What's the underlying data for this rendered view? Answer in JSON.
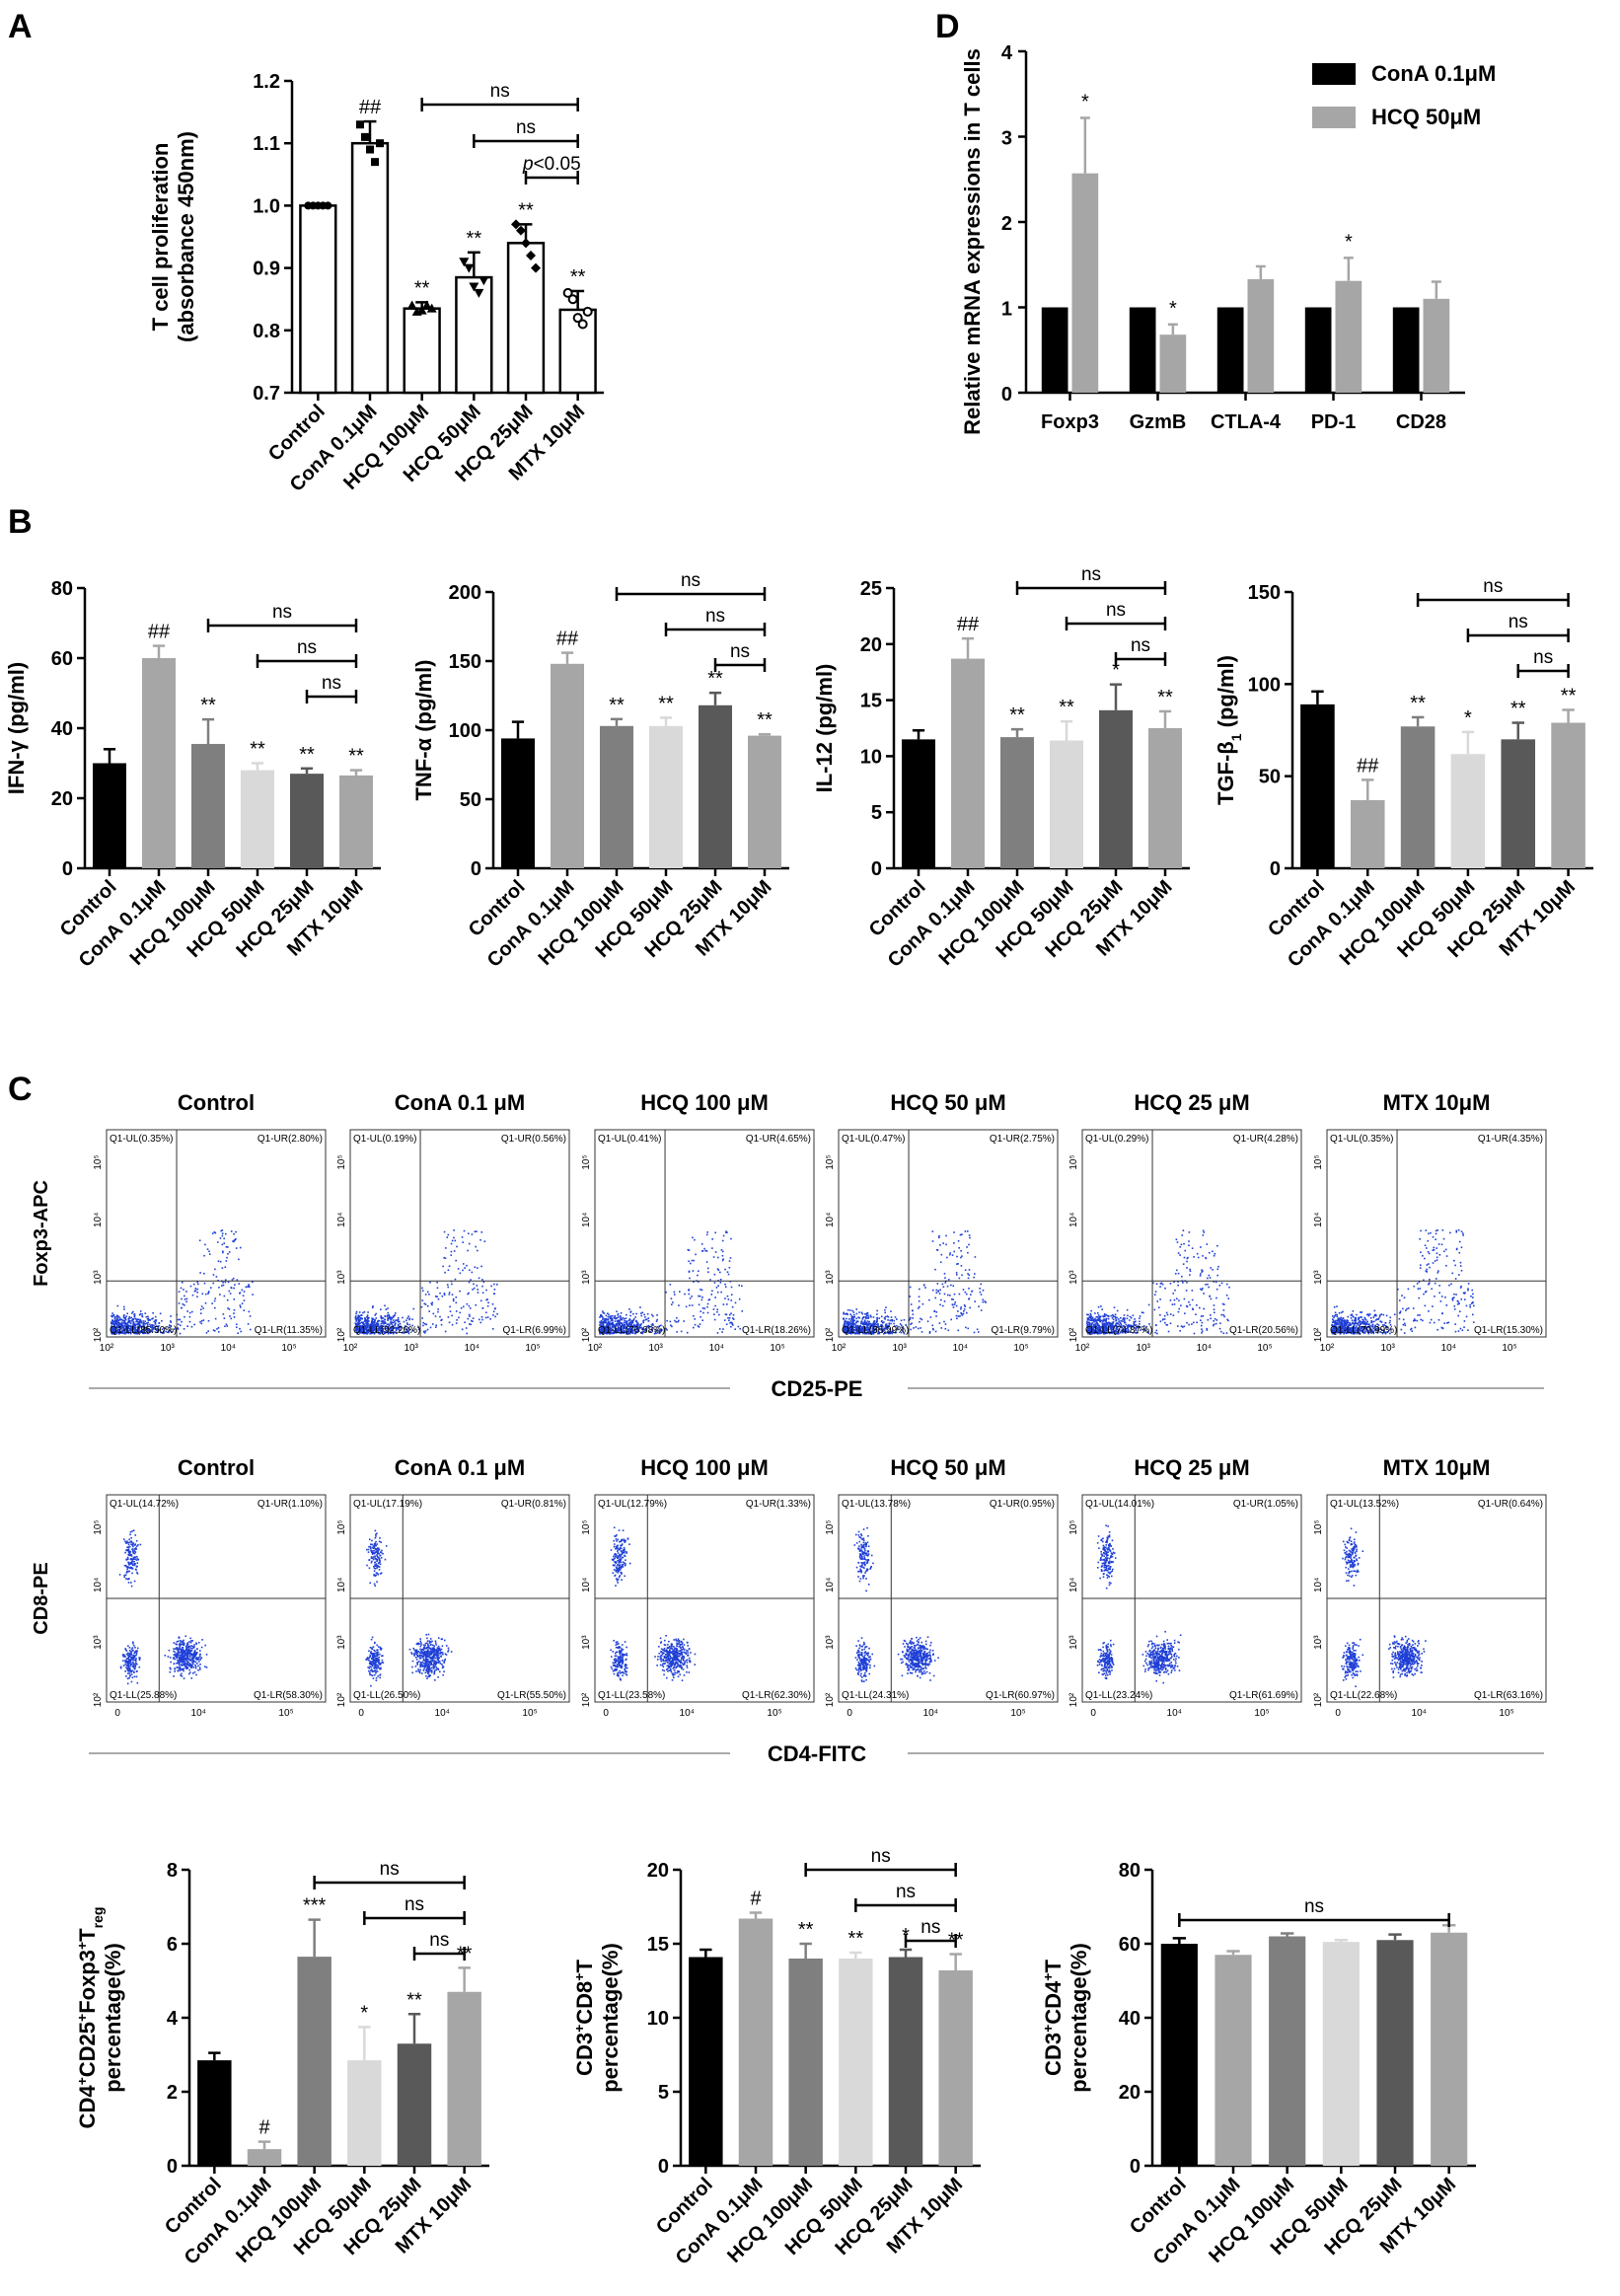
{
  "panels": {
    "A": "A",
    "B": "B",
    "C": "C",
    "D": "D"
  },
  "groups_common": [
    "Control",
    "ConA 0.1μM",
    "HCQ 100μM",
    "HCQ 50μM",
    "HCQ 25μM",
    "MTX 10μM"
  ],
  "chart_data": [
    {
      "id": "A",
      "type": "bar",
      "ylabel_lines": [
        "T cell proliferation",
        "(absorbance 450nm)"
      ],
      "ylim": [
        0.7,
        1.2
      ],
      "yticks": [
        "0.7",
        "0.8",
        "0.9",
        "1.0",
        "1.1",
        "1.2"
      ],
      "categories": [
        "Control",
        "ConA 0.1μM",
        "HCQ 100μM",
        "HCQ 50μM",
        "HCQ 25μM",
        "MTX 10μM"
      ],
      "values": [
        1.0,
        1.1,
        0.835,
        0.885,
        0.94,
        0.833
      ],
      "errors": [
        0.0,
        0.035,
        0.01,
        0.04,
        0.03,
        0.03
      ],
      "labels": [
        "",
        "##",
        "**",
        "**",
        "**",
        "**"
      ],
      "points": [
        [
          1.0,
          1.0,
          1.0,
          1.0,
          1.0
        ],
        [
          1.13,
          1.11,
          1.09,
          1.07,
          1.1
        ],
        [
          0.84,
          0.83,
          0.832,
          0.84,
          0.835
        ],
        [
          0.91,
          0.9,
          0.87,
          0.86,
          0.88
        ],
        [
          0.97,
          0.96,
          0.94,
          0.92,
          0.9
        ],
        [
          0.86,
          0.85,
          0.82,
          0.81,
          0.83
        ]
      ],
      "brackets": [
        {
          "from": 2,
          "to": 5,
          "text": "ns"
        },
        {
          "from": 3,
          "to": 5,
          "text": "ns"
        },
        {
          "from": 4,
          "to": 5,
          "text": "p<0.05"
        }
      ]
    },
    {
      "id": "D",
      "type": "bar",
      "ylabel": "Relative mRNA expressions in T cells",
      "ylim": [
        0,
        4
      ],
      "yticks": [
        "0",
        "1",
        "2",
        "3",
        "4"
      ],
      "categories": [
        "Foxp3",
        "GzmB",
        "CTLA-4",
        "PD-1",
        "CD28"
      ],
      "legend": [
        "ConA 0.1μM",
        "HCQ 50μM"
      ],
      "series": [
        {
          "name": "ConA 0.1μM",
          "values": [
            1,
            1,
            1,
            1,
            1
          ],
          "errors": [
            0,
            0,
            0,
            0,
            0
          ],
          "labels": [
            "",
            "",
            "",
            "",
            ""
          ]
        },
        {
          "name": "HCQ 50μM",
          "values": [
            2.57,
            0.68,
            1.33,
            1.31,
            1.1
          ],
          "errors": [
            0.65,
            0.12,
            0.15,
            0.27,
            0.2
          ],
          "labels": [
            "*",
            "*",
            "",
            "*",
            ""
          ]
        }
      ]
    },
    {
      "id": "B1",
      "type": "bar",
      "ylabel": "IFN-γ (pg/ml)",
      "ylim": [
        0,
        80
      ],
      "yticks": [
        "0",
        "20",
        "40",
        "60",
        "80"
      ],
      "categories": [
        "Control",
        "ConA 0.1μM",
        "HCQ 100μM",
        "HCQ 50μM",
        "HCQ 25μM",
        "MTX 10μM"
      ],
      "values": [
        30,
        60,
        35.5,
        28,
        27,
        26.5
      ],
      "errors": [
        4,
        3.5,
        7,
        2,
        1.5,
        1.5
      ],
      "labels": [
        "",
        "##",
        "**",
        "**",
        "**",
        "**"
      ],
      "brackets": [
        {
          "from": 2,
          "to": 5,
          "text": "ns"
        },
        {
          "from": 3,
          "to": 5,
          "text": "ns"
        },
        {
          "from": 4,
          "to": 5,
          "text": "ns"
        }
      ]
    },
    {
      "id": "B2",
      "type": "bar",
      "ylabel": "TNF-α (pg/ml)",
      "ylim": [
        0,
        200
      ],
      "yticks": [
        "0",
        "50",
        "100",
        "150",
        "200"
      ],
      "categories": [
        "Control",
        "ConA 0.1μM",
        "HCQ 100μM",
        "HCQ 50μM",
        "HCQ 25μM",
        "MTX 10μM"
      ],
      "values": [
        94,
        148,
        103,
        103,
        118,
        96
      ],
      "errors": [
        12,
        8,
        5,
        6,
        9,
        1
      ],
      "labels": [
        "",
        "##",
        "**",
        "**",
        "**",
        "**"
      ],
      "brackets": [
        {
          "from": 2,
          "to": 5,
          "text": "ns"
        },
        {
          "from": 3,
          "to": 5,
          "text": "ns"
        },
        {
          "from": 4,
          "to": 5,
          "text": "ns"
        }
      ]
    },
    {
      "id": "B3",
      "type": "bar",
      "ylabel": "IL-12 (pg/ml)",
      "ylim": [
        0,
        25
      ],
      "yticks": [
        "0",
        "5",
        "10",
        "15",
        "20",
        "25"
      ],
      "categories": [
        "Control",
        "ConA 0.1μM",
        "HCQ 100μM",
        "HCQ 50μM",
        "HCQ 25μM",
        "MTX 10μM"
      ],
      "values": [
        11.5,
        18.7,
        11.7,
        11.4,
        14.1,
        12.5
      ],
      "errors": [
        0.8,
        1.8,
        0.7,
        1.7,
        2.3,
        1.5
      ],
      "labels": [
        "",
        "##",
        "**",
        "**",
        "*",
        "**"
      ],
      "brackets": [
        {
          "from": 2,
          "to": 5,
          "text": "ns"
        },
        {
          "from": 3,
          "to": 5,
          "text": "ns"
        },
        {
          "from": 4,
          "to": 5,
          "text": "ns"
        }
      ]
    },
    {
      "id": "B4",
      "type": "bar",
      "ylabel": "TGF-β1 (pg/ml)",
      "ylim": [
        0,
        150
      ],
      "yticks": [
        "0",
        "50",
        "100",
        "150"
      ],
      "categories": [
        "Control",
        "ConA 0.1μM",
        "HCQ 100μM",
        "HCQ 50μM",
        "HCQ 25μM",
        "MTX 10μM"
      ],
      "values": [
        89,
        37,
        77,
        62,
        70,
        79
      ],
      "errors": [
        7,
        11,
        5,
        12,
        9,
        7
      ],
      "labels": [
        "",
        "##",
        "**",
        "*",
        "**",
        "**"
      ],
      "brackets": [
        {
          "from": 2,
          "to": 5,
          "text": "ns"
        },
        {
          "from": 3,
          "to": 5,
          "text": "ns"
        },
        {
          "from": 4,
          "to": 5,
          "text": "ns"
        }
      ]
    },
    {
      "id": "C1",
      "type": "bar",
      "ylabel_lines": [
        "CD4+CD25+Foxp3+Treg",
        "percentage(%)"
      ],
      "ylim": [
        0,
        8
      ],
      "yticks": [
        "0",
        "2",
        "4",
        "6",
        "8"
      ],
      "categories": [
        "Control",
        "ConA 0.1μM",
        "HCQ 100μM",
        "HCQ 50μM",
        "HCQ 25μM",
        "MTX 10μM"
      ],
      "values": [
        2.85,
        0.45,
        5.65,
        2.85,
        3.3,
        4.7
      ],
      "errors": [
        0.2,
        0.2,
        1.0,
        0.9,
        0.8,
        0.65
      ],
      "labels": [
        "",
        "#",
        "***",
        "*",
        "**",
        "**"
      ],
      "brackets": [
        {
          "from": 2,
          "to": 5,
          "text": "ns"
        },
        {
          "from": 3,
          "to": 5,
          "text": "ns"
        },
        {
          "from": 4,
          "to": 5,
          "text": "ns"
        }
      ]
    },
    {
      "id": "C2",
      "type": "bar",
      "ylabel_lines": [
        "CD3+CD8+T",
        "percentage(%)"
      ],
      "ylim": [
        0,
        20
      ],
      "yticks": [
        "0",
        "5",
        "10",
        "15",
        "20"
      ],
      "categories": [
        "Control",
        "ConA 0.1μM",
        "HCQ 100μM",
        "HCQ 50μM",
        "HCQ 25μM",
        "MTX 10μM"
      ],
      "values": [
        14.1,
        16.7,
        14.0,
        14.0,
        14.1,
        13.2
      ],
      "errors": [
        0.5,
        0.4,
        1.0,
        0.4,
        0.5,
        1.1
      ],
      "labels": [
        "",
        "#",
        "**",
        "**",
        "*",
        "**"
      ],
      "brackets": [
        {
          "from": 2,
          "to": 5,
          "text": "ns"
        },
        {
          "from": 3,
          "to": 5,
          "text": "ns"
        },
        {
          "from": 4,
          "to": 5,
          "text": "ns"
        }
      ]
    },
    {
      "id": "C3",
      "type": "bar",
      "ylabel_lines": [
        "CD3+CD4+T",
        "percentage(%)"
      ],
      "ylim": [
        0,
        80
      ],
      "yticks": [
        "0",
        "20",
        "40",
        "60",
        "80"
      ],
      "categories": [
        "Control",
        "ConA 0.1μM",
        "HCQ 100μM",
        "HCQ 50μM",
        "HCQ 25μM",
        "MTX 10μM"
      ],
      "values": [
        60,
        57,
        62,
        60.5,
        61,
        63
      ],
      "errors": [
        1.5,
        1,
        0.8,
        0.5,
        1.5,
        2
      ],
      "labels": [
        "",
        "",
        "",
        "",
        "",
        ""
      ],
      "brackets": [
        {
          "from": 0,
          "to": 5,
          "text": "ns"
        }
      ]
    }
  ],
  "flow": {
    "row1": {
      "titles": [
        "Control",
        "ConA 0.1 μM",
        "HCQ 100 μM",
        "HCQ 50 μM",
        "HCQ 25 μM",
        "MTX 10μM"
      ],
      "ylabel": "Foxp3-APC",
      "xlabel": "CD25-PE",
      "yticks": [
        "10²",
        "10³",
        "10⁴",
        "10⁵"
      ],
      "xticks": [
        "10²",
        "10³",
        "10⁴",
        "10⁵"
      ],
      "quadrants": [
        [
          "Q1-UL(0.35%)",
          "Q1-UR(2.80%)",
          "Q1-LL(85.50%)",
          "Q1-LR(11.35%)"
        ],
        [
          "Q1-UL(0.19%)",
          "Q1-UR(0.56%)",
          "Q1-LL(92.26%)",
          "Q1-LR(6.99%)"
        ],
        [
          "Q1-UL(0.41%)",
          "Q1-UR(4.65%)",
          "Q1-LL(76.68%)",
          "Q1-LR(18.26%)"
        ],
        [
          "Q1-UL(0.47%)",
          "Q1-UR(2.75%)",
          "Q1-LL(86.99%)",
          "Q1-LR(9.79%)"
        ],
        [
          "Q1-UL(0.29%)",
          "Q1-UR(4.28%)",
          "Q1-LL(74.87%)",
          "Q1-LR(20.56%)"
        ],
        [
          "Q1-UL(0.35%)",
          "Q1-UR(4.35%)",
          "Q1-LL(79.99%)",
          "Q1-LR(15.30%)"
        ]
      ]
    },
    "row2": {
      "titles": [
        "Control",
        "ConA 0.1 μM",
        "HCQ 100 μM",
        "HCQ 50 μM",
        "HCQ 25 μM",
        "MTX 10μM"
      ],
      "ylabel": "CD8-PE",
      "xlabel": "CD4-FITC",
      "yticks": [
        "10²",
        "10³",
        "10⁴",
        "10⁵"
      ],
      "xticks": [
        "0",
        "10⁴",
        "10⁵"
      ],
      "quadrants": [
        [
          "Q1-UL(14.72%)",
          "Q1-UR(1.10%)",
          "Q1-LL(25.88%)",
          "Q1-LR(58.30%)"
        ],
        [
          "Q1-UL(17.19%)",
          "Q1-UR(0.81%)",
          "Q1-LL(26.50%)",
          "Q1-LR(55.50%)"
        ],
        [
          "Q1-UL(12.79%)",
          "Q1-UR(1.33%)",
          "Q1-LL(23.58%)",
          "Q1-LR(62.30%)"
        ],
        [
          "Q1-UL(13.78%)",
          "Q1-UR(0.95%)",
          "Q1-LL(24.31%)",
          "Q1-LR(60.97%)"
        ],
        [
          "Q1-UL(14.01%)",
          "Q1-UR(1.05%)",
          "Q1-LL(23.24%)",
          "Q1-LR(61.69%)"
        ],
        [
          "Q1-UL(13.52%)",
          "Q1-UR(0.64%)",
          "Q1-LL(22.68%)",
          "Q1-LR(63.16%)"
        ]
      ]
    }
  },
  "colors": {
    "group_fills": [
      "#000000",
      "#a6a6a6",
      "#7f7f7f",
      "#d9d9d9",
      "#595959",
      "#a6a6a6"
    ],
    "dot_blue": "#1f3fd6",
    "legend_dark": "#000000",
    "legend_light": "#a6a6a6"
  }
}
